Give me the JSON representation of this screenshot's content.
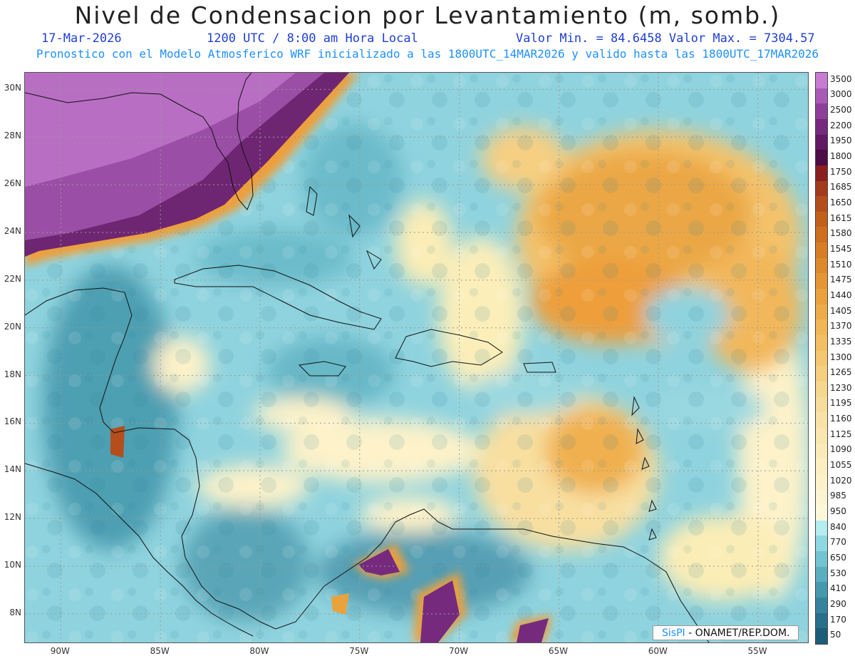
{
  "header": {
    "title": "Nivel de Condensacion por Levantamiento (m, somb.)",
    "date": "17-Mar-2026",
    "time": "1200 UTC / 8:00 am Hora Local",
    "minmax": "Valor Min. = 84.6458  Valor Max. = 7304.57",
    "model": "Pronostico con el Modelo Atmosferico WRF inicializado a las 1800UTC_14MAR2026 y valido hasta las  1800UTC_17MAR2026"
  },
  "map": {
    "lat_labels": [
      "30N",
      "28N",
      "26N",
      "24N",
      "22N",
      "20N",
      "18N",
      "16N",
      "14N",
      "12N",
      "10N",
      "8N"
    ],
    "lon_labels": [
      "90W",
      "85W",
      "80W",
      "75W",
      "70W",
      "65W",
      "60W",
      "55W"
    ],
    "lat_range": [
      6.8,
      30.7
    ],
    "lon_range": [
      -91.8,
      -52.5
    ],
    "grid_lines": true
  },
  "colorbar": {
    "labels": [
      "3500",
      "3000",
      "2500",
      "2200",
      "1950",
      "1800",
      "1750",
      "1685",
      "1650",
      "1615",
      "1580",
      "1545",
      "1510",
      "1475",
      "1440",
      "1405",
      "1370",
      "1335",
      "1300",
      "1265",
      "1230",
      "1195",
      "1160",
      "1125",
      "1090",
      "1055",
      "1020",
      "985",
      "950",
      "840",
      "770",
      "650",
      "530",
      "410",
      "290",
      "170",
      "50"
    ],
    "colors": [
      "#c77bd1",
      "#a85bb5",
      "#8e3f99",
      "#762a7e",
      "#611a63",
      "#4d0d45",
      "#8a1f1f",
      "#a43a1c",
      "#b54e1b",
      "#c2601a",
      "#cd6f1d",
      "#d77d22",
      "#df8a2a",
      "#e59632",
      "#eaa23c",
      "#eeac48",
      "#f1b655",
      "#f3bf62",
      "#f5c770",
      "#f6cf7f",
      "#f7d68d",
      "#f8dc9a",
      "#f9e2a6",
      "#faE7b0",
      "#fbebb9",
      "#fcefc2",
      "#fdf2ca",
      "#fdf5d2",
      "#fef8da",
      "#b4ecf0",
      "#8fd8e1",
      "#72c4d2",
      "#5aaec0",
      "#4698ad",
      "#35839c",
      "#276f8a",
      "#1c5e7a"
    ]
  },
  "credit": {
    "brand": "SisPI",
    "text": " - ONAMET/REP.DOM."
  }
}
